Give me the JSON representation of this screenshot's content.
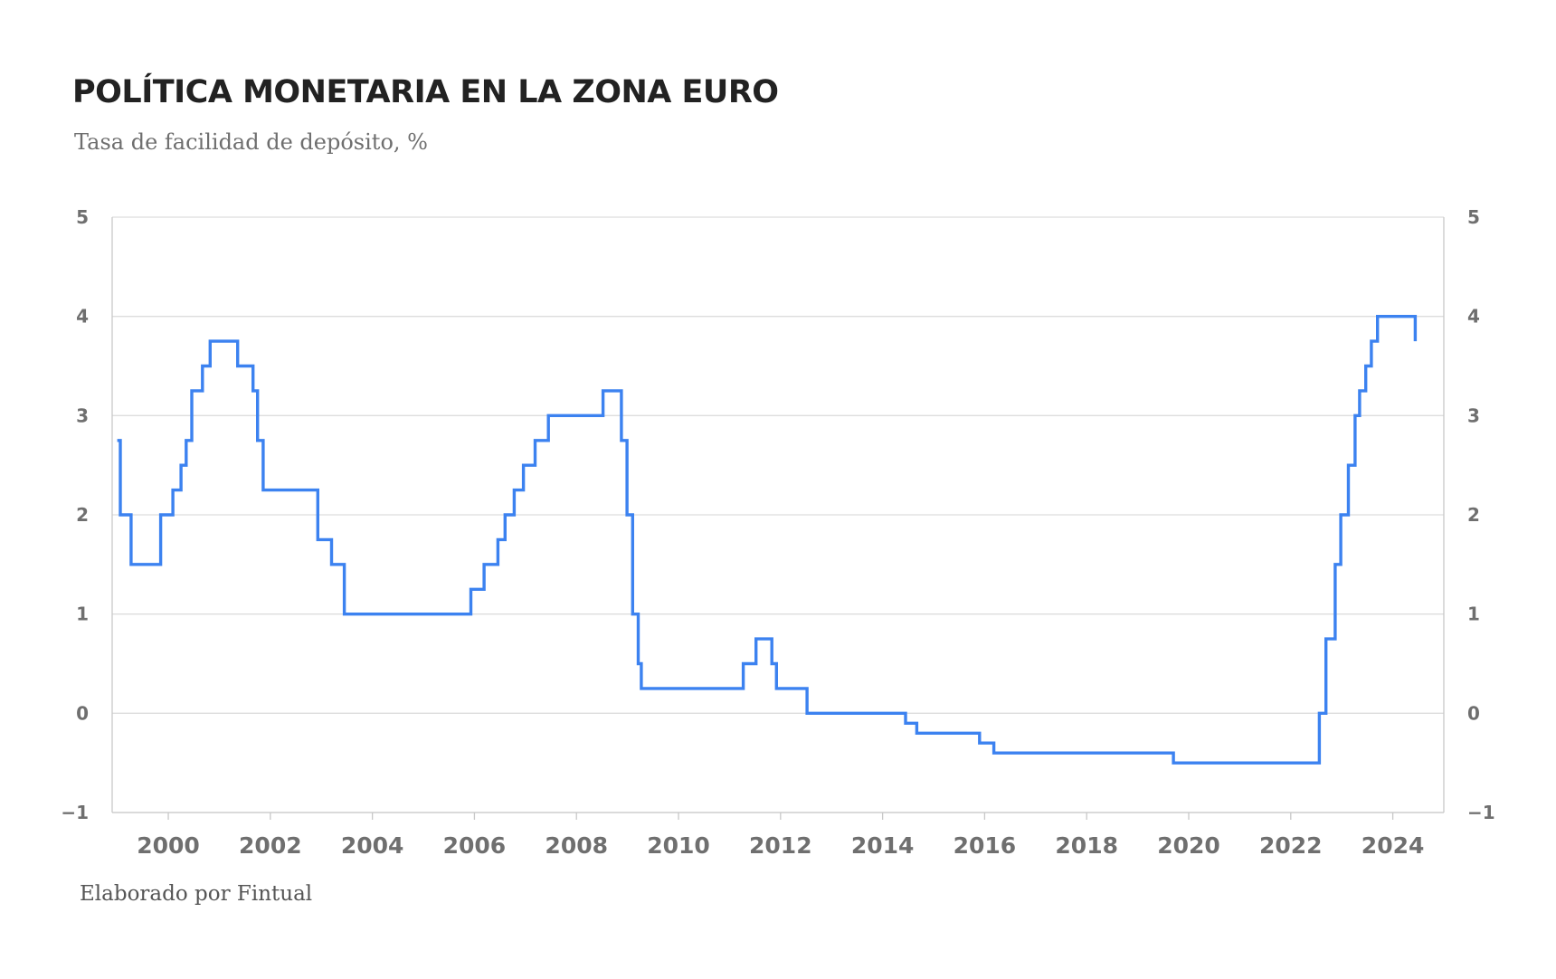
{
  "header": {
    "title": "POLÍTICA MONETARIA EN LA ZONA EURO",
    "subtitle": "Tasa de facilidad de depósito, %"
  },
  "footer": {
    "source": "Elaborado por Fintual"
  },
  "colors": {
    "line": "#3c82f0",
    "grid": "#dddddd",
    "axis": "#c8c8c8",
    "tick_text": "#6f6f6f"
  },
  "chart_data": {
    "type": "line",
    "step": true,
    "title": "POLÍTICA MONETARIA EN LA ZONA EURO",
    "subtitle": "Tasa de facilidad de depósito, %",
    "xlabel": "",
    "ylabel": "",
    "xlim": [
      1998.9,
      2025.0
    ],
    "ylim": [
      -1,
      5
    ],
    "x_ticks": [
      2000,
      2002,
      2004,
      2006,
      2008,
      2010,
      2012,
      2014,
      2016,
      2018,
      2020,
      2022,
      2024
    ],
    "y_ticks": [
      -1,
      0,
      1,
      2,
      3,
      4,
      5
    ],
    "y_axis_sides": [
      "left",
      "right"
    ],
    "grid": true,
    "legend": "none",
    "series": [
      {
        "x": [
          1999.0,
          1999.06,
          1999.27,
          1999.85,
          2000.09,
          2000.25,
          2000.35,
          2000.46,
          2000.67,
          2000.82,
          2001.36,
          2001.66,
          2001.75,
          2001.86,
          2002.93,
          2003.2,
          2003.45,
          2005.93,
          2006.19,
          2006.46,
          2006.6,
          2006.78,
          2006.96,
          2007.19,
          2007.45,
          2008.52,
          2008.88,
          2008.99,
          2009.1,
          2009.21,
          2009.27,
          2011.27,
          2011.52,
          2011.83,
          2011.92,
          2012.52,
          2014.45,
          2014.67,
          2015.9,
          2016.18,
          2019.7,
          2022.56,
          2022.69,
          2022.87,
          2022.98,
          2023.13,
          2023.26,
          2023.35,
          2023.47,
          2023.58,
          2023.7,
          2024.44
        ],
        "y": [
          2.75,
          2.0,
          1.5,
          2.0,
          2.25,
          2.5,
          2.75,
          3.25,
          3.5,
          3.75,
          3.5,
          3.25,
          2.75,
          2.25,
          1.75,
          1.5,
          1.0,
          1.25,
          1.5,
          1.75,
          2.0,
          2.25,
          2.5,
          2.75,
          3.0,
          3.25,
          2.75,
          2.0,
          1.0,
          0.5,
          0.25,
          0.5,
          0.75,
          0.5,
          0.25,
          0.0,
          -0.1,
          -0.2,
          -0.3,
          -0.4,
          -0.5,
          0.0,
          0.75,
          1.5,
          2.0,
          2.5,
          3.0,
          3.25,
          3.5,
          3.75,
          4.0,
          3.75
        ],
        "x_end": 2024.44
      }
    ]
  }
}
